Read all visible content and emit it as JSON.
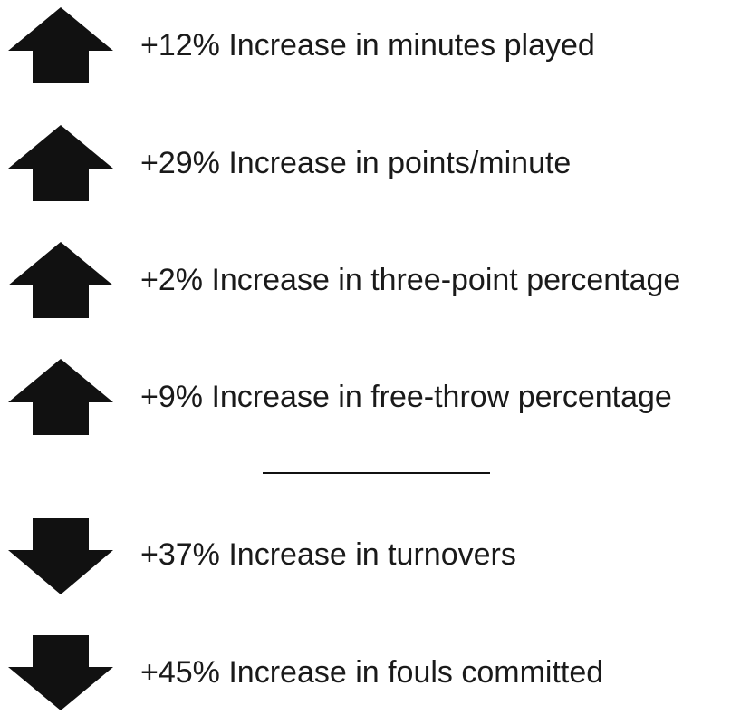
{
  "items": [
    "+12% Increase in minutes played",
    "+29% Increase in points/minute",
    "+2% Increase in three-point percentage",
    "+9% Increase in free-throw percentage",
    "+37% Increase in turnovers",
    "+45% Increase in fouls committed"
  ]
}
